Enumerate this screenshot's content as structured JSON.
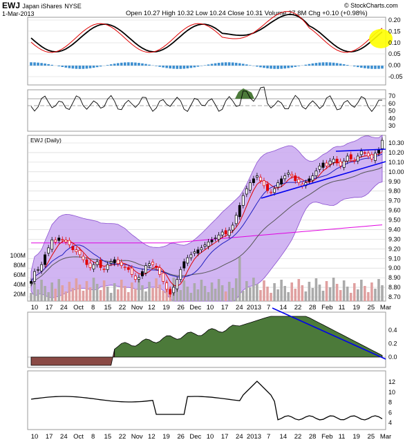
{
  "header": {
    "symbol": "EWJ",
    "name": "Japan iShares",
    "exchange": "NYSE",
    "date": "1-Mar-2013",
    "quote": "Open 10.27  High 10.32  Low 10.24  Close 10.31  Volume 27.8M  Chg +0.10 (+0.98%)",
    "brand": "© StockCharts.com"
  },
  "price_label": "EWJ (Daily)",
  "colors": {
    "bollinger_fill": "#c9a8f0",
    "bollinger_line": "#8a4fd0",
    "ma_red": "#e00000",
    "ma_blue": "#2020c0",
    "ma_gray": "#555555",
    "ma_magenta": "#e000e0",
    "trendline": "#0000ee",
    "highlight": "#ffff00",
    "hist_blue": "#3d8fd0",
    "ad_green": "#4c7a3a",
    "ad_red": "#8a4a45",
    "volume_gray": "#aaaaaa",
    "volume_red": "#e0a0a0"
  },
  "x_labels": [
    "10",
    "17",
    "24",
    "Oct",
    "8",
    "15",
    "22",
    "Nov",
    "12",
    "19",
    "26",
    "Dec",
    "10",
    "17",
    "24",
    "2013",
    "7",
    "14",
    "22",
    "28",
    "Feb",
    "11",
    "19",
    "25",
    "Mar"
  ],
  "chart_data": [
    {
      "type": "line",
      "panel": "macd",
      "ylim": [
        -0.05,
        0.2
      ],
      "y_ticks": [
        "0.20",
        "0.15",
        "0.10",
        "0.05",
        "0.00",
        "-0.05"
      ],
      "series": []
    },
    {
      "type": "line",
      "panel": "rsi",
      "y_ticks": [
        "70",
        "60",
        "50",
        "40",
        "30"
      ]
    },
    {
      "type": "candlestick",
      "panel": "price",
      "ylim": [
        8.68,
        10.36
      ],
      "y_ticks": [
        "10.30",
        "10.20",
        "10.10",
        "10.00",
        "9.90",
        "9.80",
        "9.70",
        "9.60",
        "9.50",
        "9.40",
        "9.30",
        "9.20",
        "9.10",
        "9.00",
        "8.90",
        "8.80",
        "8.70"
      ],
      "volume_ticks": [
        "100M",
        "80M",
        "60M",
        "40M",
        "20M"
      ],
      "closes": [
        8.88,
        8.98,
        9.0,
        9.05,
        9.15,
        9.22,
        9.3,
        9.28,
        9.32,
        9.3,
        9.28,
        9.25,
        9.2,
        9.18,
        9.15,
        9.1,
        9.05,
        9.02,
        9.05,
        9.08,
        9.02,
        9.0,
        9.05,
        9.08,
        9.1,
        9.06,
        9.04,
        9.02,
        9.0,
        8.95,
        8.9,
        8.92,
        8.98,
        9.04,
        9.06,
        9.05,
        9.02,
        8.95,
        8.88,
        8.8,
        8.75,
        8.82,
        8.9,
        9.0,
        9.08,
        9.12,
        9.15,
        9.18,
        9.2,
        9.22,
        9.25,
        9.28,
        9.3,
        9.32,
        9.35,
        9.38,
        9.36,
        9.4,
        9.45,
        9.55,
        9.65,
        9.75,
        9.82,
        9.88,
        9.92,
        9.95,
        9.9,
        9.85,
        9.8,
        9.78,
        9.82,
        9.88,
        9.92,
        9.95,
        9.98,
        9.95,
        9.9,
        9.88,
        9.85,
        9.88,
        9.92,
        9.95,
        10.0,
        10.05,
        10.08,
        10.05,
        10.1,
        10.12,
        10.08,
        10.05,
        10.1,
        10.15,
        10.12,
        10.1,
        10.15,
        10.2,
        10.18,
        10.15,
        10.12,
        10.18,
        10.21,
        10.31
      ]
    },
    {
      "type": "area",
      "panel": "accumulation",
      "y_ticks": [
        "0.4",
        "0.2",
        "0.0"
      ]
    },
    {
      "type": "line",
      "panel": "bottom",
      "y_ticks": [
        "12",
        "10",
        "8",
        "6",
        "4"
      ]
    }
  ]
}
